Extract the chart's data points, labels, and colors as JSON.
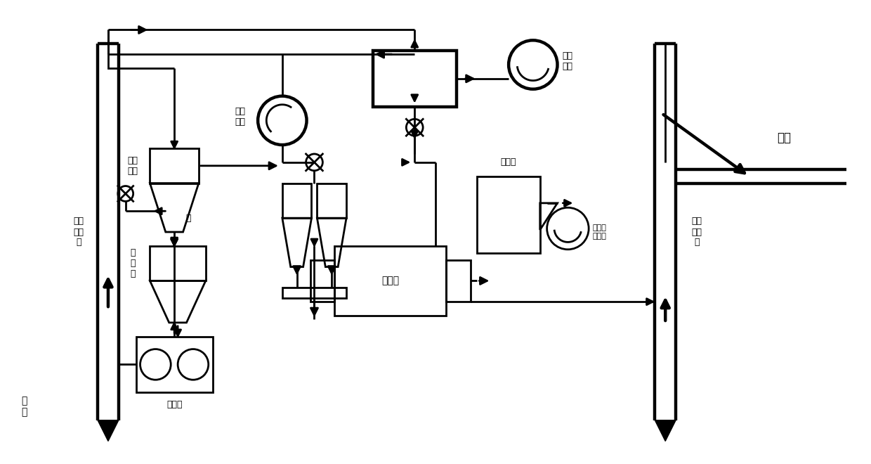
{
  "bg_color": "#ffffff",
  "lw": 2.0,
  "lw2": 3.2,
  "lw3": 4.5,
  "xlim": [
    0,
    124
  ],
  "ylim": [
    0,
    66
  ],
  "labels": {
    "xulhuanfengji": "循环\n风机",
    "qianxuanfengji": "前选\n粉机",
    "zhupaiifengji": "主排\n风机",
    "wending": "稳\n流\n仓",
    "rumo": "入磨\n提升\n机",
    "chumo": "出磨\n提升\n机",
    "qiumoji": "球磨机",
    "shouchengqi": "收尘器",
    "moweihoufengji": "磨尾收\n尘风机",
    "ruku": "入库",
    "lunaji": "辊压机",
    "xuan": "选",
    "siliao": "喂\n料"
  }
}
